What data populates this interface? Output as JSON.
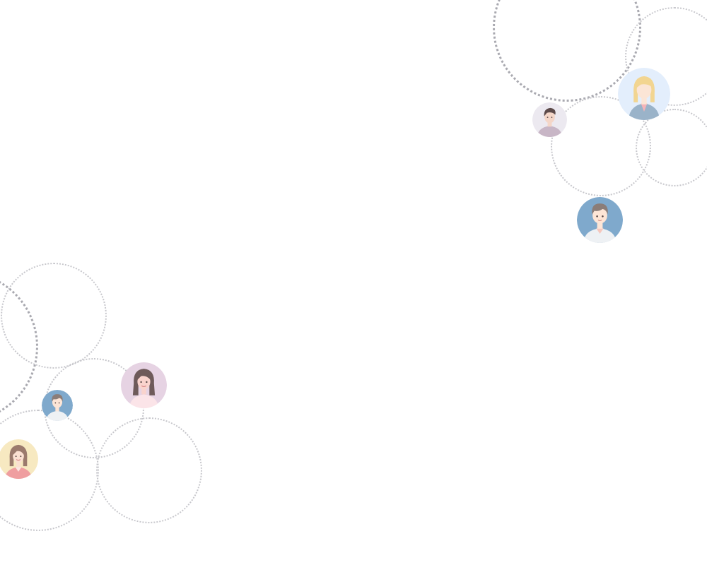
{
  "scene": {
    "ring_color": "#c7c7cc",
    "ring_color_bold": "#a9a9b0",
    "background": "#ffffff"
  },
  "avatars": [
    {
      "name": "avatar-blonde-woman-blazer",
      "bg": "#e3eefc",
      "skin": "#fbe5d6",
      "hair": "#f2d591",
      "shirt": "#9ab3c9"
    },
    {
      "name": "avatar-man-mauve-shirt",
      "bg": "#ece9f0",
      "skin": "#f4d6c8",
      "hair": "#5c4a4a",
      "shirt": "#c8b6c6"
    },
    {
      "name": "avatar-man-white-shirt",
      "bg": "#7fa9cc",
      "skin": "#fde5d6",
      "hair": "#8b7d78",
      "shirt": "#eef1f4"
    },
    {
      "name": "avatar-woman-dark-hair",
      "bg": "#e6d3e3",
      "skin": "#f9d3cd",
      "hair": "#6e5a5a",
      "shirt": "#fbe4e8"
    },
    {
      "name": "avatar-small-man",
      "bg": "#7fa9cc",
      "skin": "#fde5d6",
      "hair": "#8b7d78",
      "shirt": "#eef1f4"
    },
    {
      "name": "avatar-woman-pink-shirt",
      "bg": "#f7e9c1",
      "skin": "#fbe0d2",
      "hair": "#9b7a6d",
      "shirt": "#ef9ea0"
    }
  ]
}
